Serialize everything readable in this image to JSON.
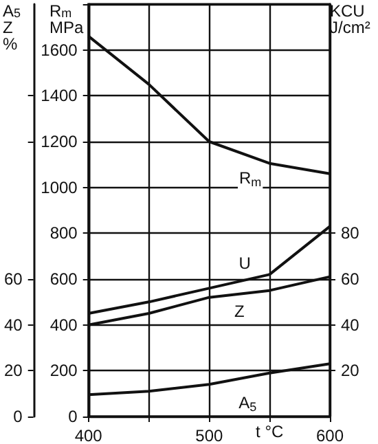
{
  "chart_data": {
    "type": "line",
    "xlabel": "t °C",
    "ylabel": "R$_{m}$\nMPa",
    "y2label": "A$_{5}$\nZ\n%",
    "y3label": "KCU\nJ/cm²",
    "x": [
      400,
      450,
      500,
      550,
      600
    ],
    "xlim": [
      400,
      600
    ],
    "xticks": [
      400,
      {
        "value": 450,
        "label": null
      },
      500,
      {
        "value": 550,
        "label": null
      },
      600
    ],
    "ylim": [
      0,
      1800
    ],
    "yticks": [
      0,
      200,
      400,
      600,
      800,
      1000,
      1200,
      1400,
      1600
    ],
    "y2lim": [
      0,
      180
    ],
    "y2ticks": [
      0,
      20,
      40,
      60,
      {
        "value": 120,
        "label": null
      },
      {
        "value": 140,
        "label": null
      }
    ],
    "y3lim": [
      0,
      180
    ],
    "y3ticks": [
      20,
      40,
      60,
      80
    ],
    "grid": true,
    "marker": "none",
    "line_style": "solid",
    "series": [
      {
        "name": "R$_{m}$",
        "color": "#111111",
        "axis": "y",
        "values": [
          1660,
          1450,
          1200,
          1105,
          1060
        ]
      },
      {
        "name": "U",
        "color": "#111111",
        "axis": "y3",
        "values": [
          45,
          50,
          56,
          62,
          83
        ]
      },
      {
        "name": "Z",
        "color": "#111111",
        "axis": "y2",
        "values": [
          40,
          45,
          52,
          55,
          61
        ]
      },
      {
        "name": "A$_{5}$",
        "color": "#111111",
        "axis": "y2",
        "values": [
          9.5,
          11,
          14,
          19,
          23
        ]
      }
    ]
  }
}
